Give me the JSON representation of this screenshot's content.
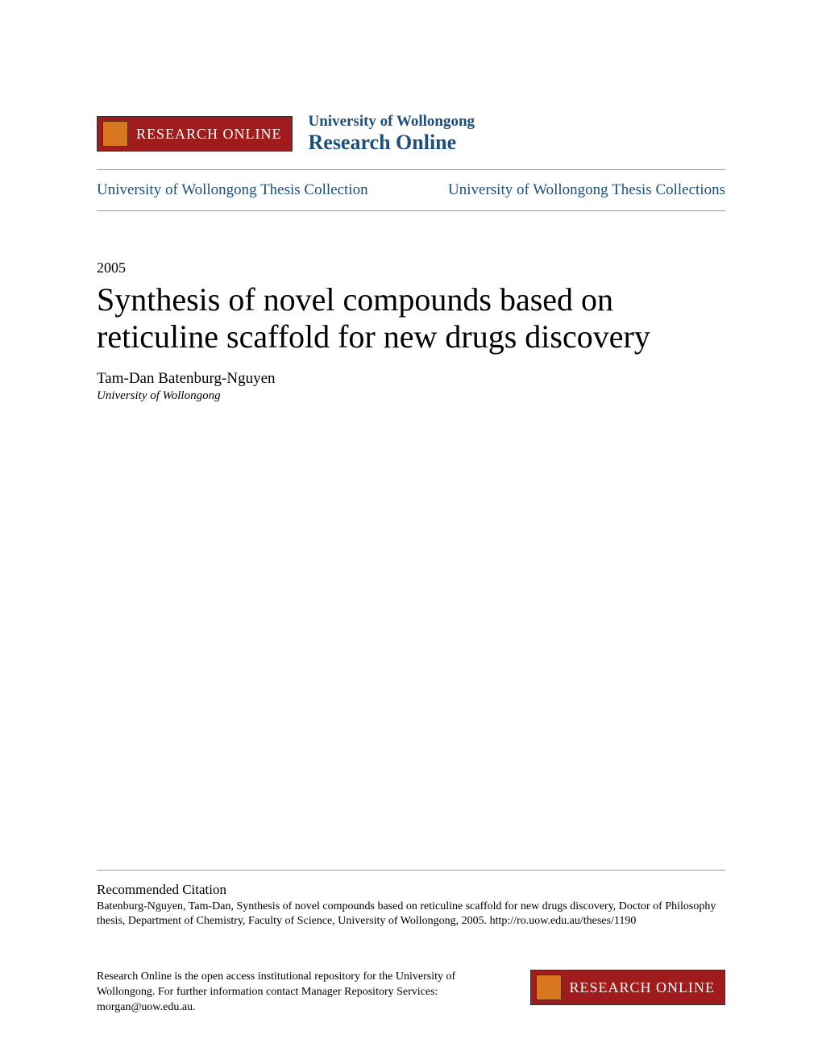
{
  "header": {
    "banner_text": "RESEARCH ONLINE",
    "university": "University of Wollongong",
    "site_name": "Research Online",
    "banner_bg": "#a01c1c",
    "banner_text_color": "#ffffff",
    "crest_color": "#d97720",
    "uni_text_color": "#1d4f7a"
  },
  "nav": {
    "left": "University of Wollongong Thesis Collection",
    "right": "University of Wollongong Thesis Collections",
    "link_color": "#1d4f7a"
  },
  "paper": {
    "year": "2005",
    "title": "Synthesis of novel compounds based on reticuline scaffold for new drugs discovery",
    "author": "Tam-Dan Batenburg-Nguyen",
    "affiliation": "University of Wollongong"
  },
  "citation": {
    "heading": "Recommended Citation",
    "text": "Batenburg-Nguyen, Tam-Dan, Synthesis of novel compounds based on reticuline scaffold for new drugs discovery, Doctor of Philosophy thesis, Department of Chemistry, Faculty of Science, University of Wollongong, 2005. http://ro.uow.edu.au/theses/1190"
  },
  "footer": {
    "text": "Research Online is the open access institutional repository for the University of Wollongong. For further information contact Manager Repository Services: morgan@uow.edu.au.",
    "banner_text": "RESEARCH ONLINE"
  },
  "colors": {
    "background": "#ffffff",
    "text": "#000000",
    "divider": "#999999"
  }
}
